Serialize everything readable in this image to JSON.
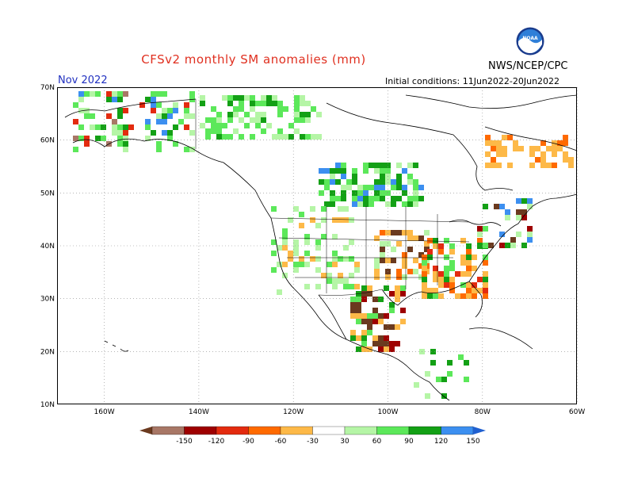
{
  "header": {
    "title": "CFSv2 monthly SM anomalies (mm)",
    "agency": "NWS/NCEP/CPC",
    "month": "Nov 2022",
    "initial_conditions": "Initial conditions: 11Jun2022-20Jun2022",
    "logo_text": "NOAA"
  },
  "map": {
    "lat_labels": [
      "70N",
      "60N",
      "50N",
      "40N",
      "30N",
      "20N",
      "10N"
    ],
    "lon_labels": [
      "160W",
      "140W",
      "120W",
      "100W",
      "80W",
      "60W"
    ]
  },
  "legend": {
    "labels": [
      "-150",
      "-120",
      "-90",
      "-60",
      "-30",
      "30",
      "60",
      "90",
      "120",
      "150"
    ],
    "colors": [
      "#6b3a1f",
      "#a87766",
      "#9e0000",
      "#e32b0f",
      "#ff6a00",
      "#fdb948",
      "#ffffff",
      "#b5f5a6",
      "#5ce85a",
      "#13a015",
      "#3c8ff0",
      "#2060d0"
    ]
  }
}
